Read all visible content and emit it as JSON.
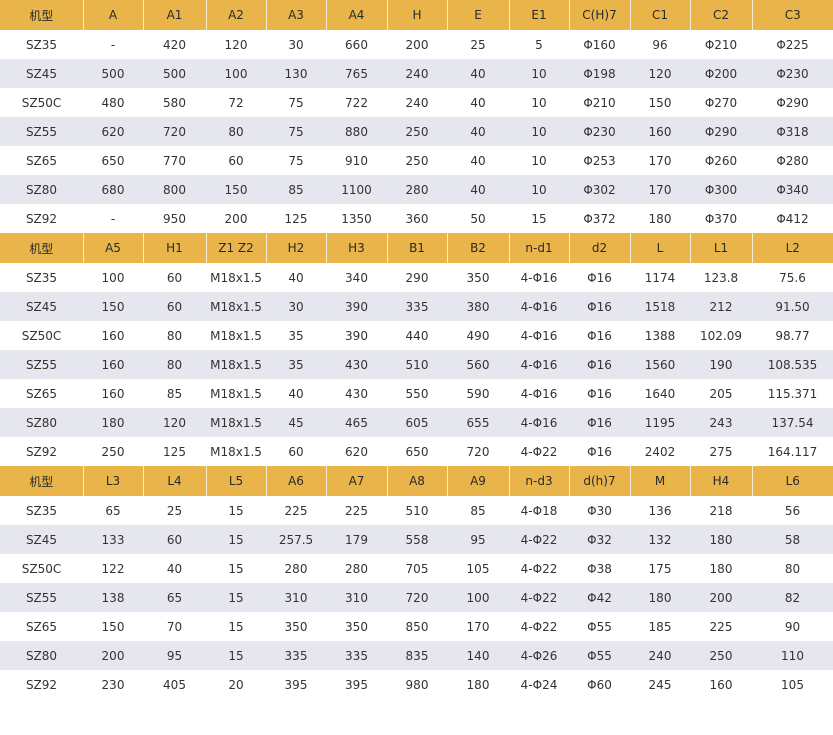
{
  "colors": {
    "header_bg": "#e9b54a",
    "row_alt_bg": "#e6e7ee",
    "row_bg": "#ffffff"
  },
  "sections": [
    {
      "headers": [
        "机型",
        "A",
        "A1",
        "A2",
        "A3",
        "A4",
        "H",
        "E",
        "E1",
        "C(H)7",
        "C1",
        "C2",
        "C3"
      ],
      "rows": [
        [
          "SZ35",
          "-",
          "420",
          "120",
          "30",
          "660",
          "200",
          "25",
          "5",
          "Φ160",
          "96",
          "Φ210",
          "Φ225"
        ],
        [
          "SZ45",
          "500",
          "500",
          "100",
          "130",
          "765",
          "240",
          "40",
          "10",
          "Φ198",
          "120",
          "Φ200",
          "Φ230"
        ],
        [
          "SZ50C",
          "480",
          "580",
          "72",
          "75",
          "722",
          "240",
          "40",
          "10",
          "Φ210",
          "150",
          "Φ270",
          "Φ290"
        ],
        [
          "SZ55",
          "620",
          "720",
          "80",
          "75",
          "880",
          "250",
          "40",
          "10",
          "Φ230",
          "160",
          "Φ290",
          "Φ318"
        ],
        [
          "SZ65",
          "650",
          "770",
          "60",
          "75",
          "910",
          "250",
          "40",
          "10",
          "Φ253",
          "170",
          "Φ260",
          "Φ280"
        ],
        [
          "SZ80",
          "680",
          "800",
          "150",
          "85",
          "1100",
          "280",
          "40",
          "10",
          "Φ302",
          "170",
          "Φ300",
          "Φ340"
        ],
        [
          "SZ92",
          "-",
          "950",
          "200",
          "125",
          "1350",
          "360",
          "50",
          "15",
          "Φ372",
          "180",
          "Φ370",
          "Φ412"
        ]
      ]
    },
    {
      "headers": [
        "机型",
        "A5",
        "H1",
        "Z1 Z2",
        "H2",
        "H3",
        "B1",
        "B2",
        "n-d1",
        "d2",
        "L",
        "L1",
        "L2"
      ],
      "rows": [
        [
          "SZ35",
          "100",
          "60",
          "M18x1.5",
          "40",
          "340",
          "290",
          "350",
          "4-Φ16",
          "Φ16",
          "1174",
          "123.8",
          "75.6"
        ],
        [
          "SZ45",
          "150",
          "60",
          "M18x1.5",
          "30",
          "390",
          "335",
          "380",
          "4-Φ16",
          "Φ16",
          "1518",
          "212",
          "91.50"
        ],
        [
          "SZ50C",
          "160",
          "80",
          "M18x1.5",
          "35",
          "390",
          "440",
          "490",
          "4-Φ16",
          "Φ16",
          "1388",
          "102.09",
          "98.77"
        ],
        [
          "SZ55",
          "160",
          "80",
          "M18x1.5",
          "35",
          "430",
          "510",
          "560",
          "4-Φ16",
          "Φ16",
          "1560",
          "190",
          "108.535"
        ],
        [
          "SZ65",
          "160",
          "85",
          "M18x1.5",
          "40",
          "430",
          "550",
          "590",
          "4-Φ16",
          "Φ16",
          "1640",
          "205",
          "115.371"
        ],
        [
          "SZ80",
          "180",
          "120",
          "M18x1.5",
          "45",
          "465",
          "605",
          "655",
          "4-Φ16",
          "Φ16",
          "1195",
          "243",
          "137.54"
        ],
        [
          "SZ92",
          "250",
          "125",
          "M18x1.5",
          "60",
          "620",
          "650",
          "720",
          "4-Φ22",
          "Φ16",
          "2402",
          "275",
          "164.117"
        ]
      ]
    },
    {
      "headers": [
        "机型",
        "L3",
        "L4",
        "L5",
        "A6",
        "A7",
        "A8",
        "A9",
        "n-d3",
        "d(h)7",
        "M",
        "H4",
        "L6"
      ],
      "rows": [
        [
          "SZ35",
          "65",
          "25",
          "15",
          "225",
          "225",
          "510",
          "85",
          "4-Φ18",
          "Φ30",
          "136",
          "218",
          "56"
        ],
        [
          "SZ45",
          "133",
          "60",
          "15",
          "257.5",
          "179",
          "558",
          "95",
          "4-Φ22",
          "Φ32",
          "132",
          "180",
          "58"
        ],
        [
          "SZ50C",
          "122",
          "40",
          "15",
          "280",
          "280",
          "705",
          "105",
          "4-Φ22",
          "Φ38",
          "175",
          "180",
          "80"
        ],
        [
          "SZ55",
          "138",
          "65",
          "15",
          "310",
          "310",
          "720",
          "100",
          "4-Φ22",
          "Φ42",
          "180",
          "200",
          "82"
        ],
        [
          "SZ65",
          "150",
          "70",
          "15",
          "350",
          "350",
          "850",
          "170",
          "4-Φ22",
          "Φ55",
          "185",
          "225",
          "90"
        ],
        [
          "SZ80",
          "200",
          "95",
          "15",
          "335",
          "335",
          "835",
          "140",
          "4-Φ26",
          "Φ55",
          "240",
          "250",
          "110"
        ],
        [
          "SZ92",
          "230",
          "405",
          "20",
          "395",
          "395",
          "980",
          "180",
          "4-Φ24",
          "Φ60",
          "245",
          "160",
          "105"
        ]
      ]
    }
  ]
}
